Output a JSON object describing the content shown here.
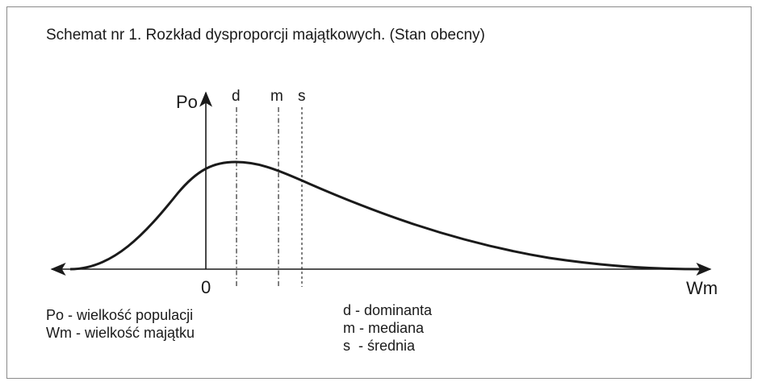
{
  "diagram": {
    "title": "Schemat nr 1. Rozkład dysproporcji majątkowych. (Stan obecny)",
    "y_axis_label": "Po",
    "x_axis_label": "Wm",
    "origin_label": "0",
    "markers": [
      {
        "key": "d",
        "label": "d"
      },
      {
        "key": "m",
        "label": "m"
      },
      {
        "key": "s",
        "label": "s"
      }
    ],
    "legend_left": [
      "Po - wielkość populacji",
      "Wm - wielkość majątku"
    ],
    "legend_right": [
      "d - dominanta",
      "m - mediana",
      "s  - średnia"
    ],
    "curve_color": "#1a1a1a",
    "line_color": "#1a1a1a",
    "border_color": "#8a8a8a"
  }
}
